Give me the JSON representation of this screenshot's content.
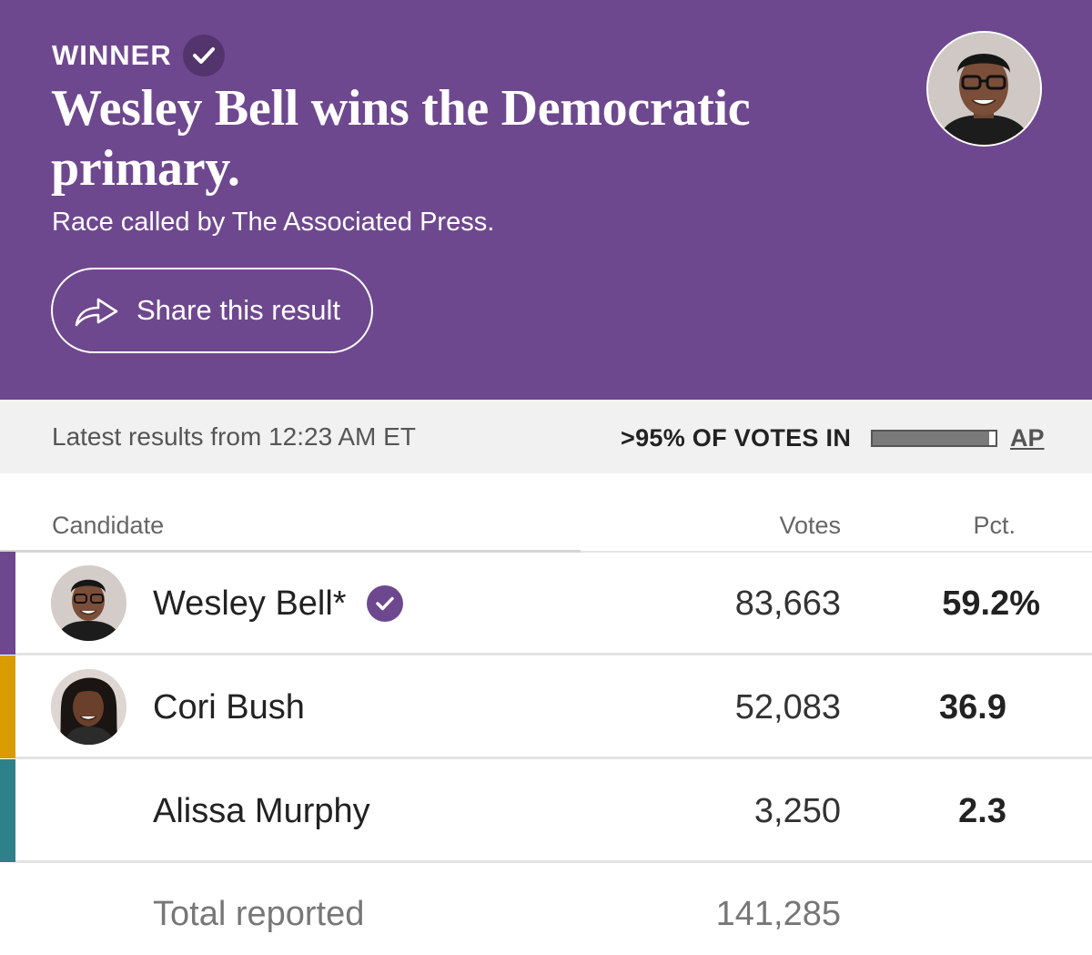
{
  "banner": {
    "winner_label": "WINNER",
    "headline": "Wesley Bell wins the Democratic primary.",
    "called_by": "Race called by The Associated Press.",
    "share_label": "Share this result",
    "share_icon": "share-arrow-icon",
    "check_icon": "checkmark-icon",
    "background_color": "#6e488e"
  },
  "status": {
    "latest": "Latest results from 12:23 AM ET",
    "votes_in": ">95% OF VOTES IN",
    "progress_fraction": 0.95,
    "source": "AP"
  },
  "table": {
    "headers": {
      "candidate": "Candidate",
      "votes": "Votes",
      "pct": "Pct."
    },
    "rows": [
      {
        "name": "Wesley Bell*",
        "votes": "83,663",
        "pct": "59.2%",
        "winner": true,
        "color": "#6e488e",
        "has_photo": true
      },
      {
        "name": "Cori Bush",
        "votes": "52,083",
        "pct": "36.9",
        "winner": false,
        "color": "#d99c00",
        "has_photo": true
      },
      {
        "name": "Alissa Murphy",
        "votes": "3,250",
        "pct": "2.3",
        "winner": false,
        "color": "#2f8189",
        "has_photo": false
      }
    ],
    "total": {
      "label": "Total reported",
      "votes": "141,285"
    }
  }
}
